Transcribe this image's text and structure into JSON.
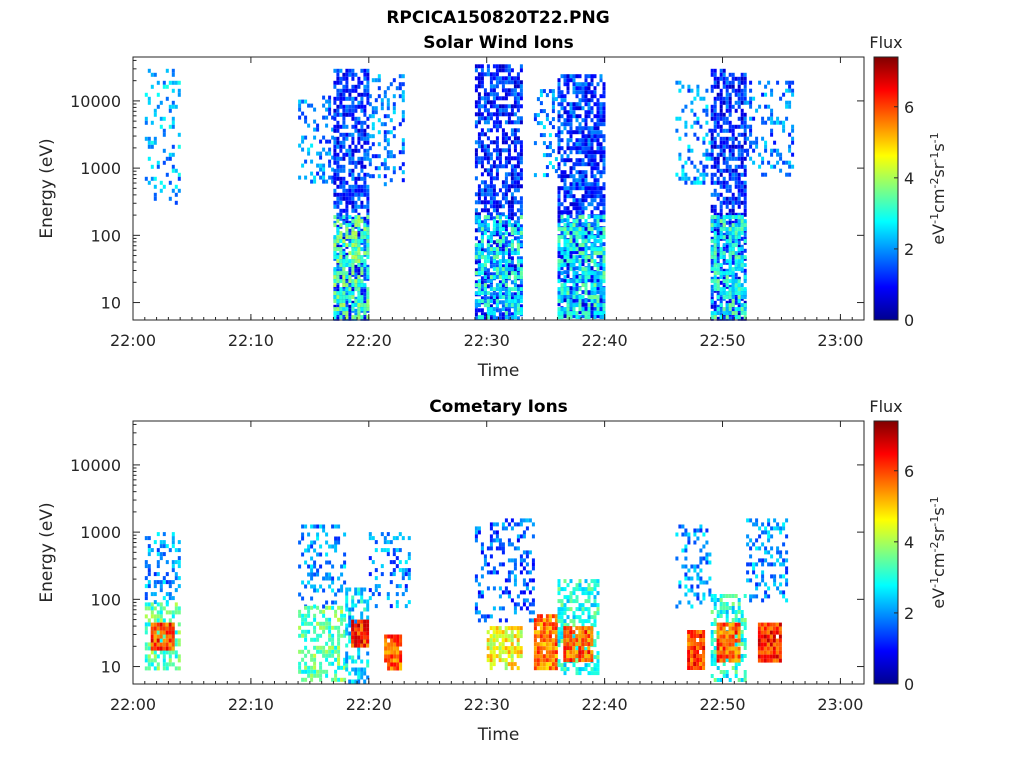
{
  "figure": {
    "title": "RPCICA150820T22.PNG"
  },
  "colormap": [
    "#00008f",
    "#0000ff",
    "#0080ff",
    "#00ffff",
    "#80ff80",
    "#ffff00",
    "#ff8000",
    "#ff0000",
    "#800000"
  ],
  "chart_data": [
    {
      "type": "heatmap",
      "title": "Solar Wind Ions",
      "xlabel": "Time",
      "ylabel": "Energy (eV)",
      "yscale": "log",
      "xlim": [
        "22:00",
        "23:02"
      ],
      "ylim": [
        5.5,
        45000
      ],
      "xticks": [
        "22:00",
        "22:10",
        "22:20",
        "22:30",
        "22:40",
        "22:50",
        "23:00"
      ],
      "yticks": [
        "10",
        "100",
        "1000",
        "10000"
      ],
      "colorbar": {
        "label": "Flux",
        "unit": "eV-1cm-2sr-1s-1",
        "range": [
          0,
          7.4
        ],
        "ticks": [
          "0",
          "2",
          "4",
          "6"
        ]
      },
      "grid": false,
      "clusters": [
        {
          "t_start": "22:01",
          "t_end": "22:04",
          "e_min": 300,
          "e_max": 30000,
          "flux_mean": 2.2,
          "density": 0.25
        },
        {
          "t_start": "22:14",
          "t_end": "22:17",
          "e_min": 600,
          "e_max": 12000,
          "flux_mean": 1.9,
          "density": 0.28
        },
        {
          "t_start": "22:17",
          "t_end": "22:20",
          "e_min": 6,
          "e_max": 30000,
          "flux_mean": 1.3,
          "density": 0.7
        },
        {
          "t_start": "22:17",
          "t_end": "22:20",
          "e_min": 6,
          "e_max": 200,
          "flux_mean": 3.3,
          "density": 0.7
        },
        {
          "t_start": "22:20",
          "t_end": "22:23",
          "e_min": 600,
          "e_max": 25000,
          "flux_mean": 1.8,
          "density": 0.3
        },
        {
          "t_start": "22:29",
          "t_end": "22:33",
          "e_min": 6,
          "e_max": 35000,
          "flux_mean": 1.2,
          "density": 0.62
        },
        {
          "t_start": "22:29",
          "t_end": "22:33",
          "e_min": 6,
          "e_max": 200,
          "flux_mean": 2.8,
          "density": 0.55
        },
        {
          "t_start": "22:34",
          "t_end": "22:36",
          "e_min": 800,
          "e_max": 15000,
          "flux_mean": 2.0,
          "density": 0.25
        },
        {
          "t_start": "22:36",
          "t_end": "22:40",
          "e_min": 6,
          "e_max": 25000,
          "flux_mean": 1.3,
          "density": 0.7
        },
        {
          "t_start": "22:36",
          "t_end": "22:40",
          "e_min": 6,
          "e_max": 200,
          "flux_mean": 2.9,
          "density": 0.65
        },
        {
          "t_start": "22:46",
          "t_end": "22:49",
          "e_min": 600,
          "e_max": 20000,
          "flux_mean": 2.0,
          "density": 0.3
        },
        {
          "t_start": "22:49",
          "t_end": "22:52",
          "e_min": 6,
          "e_max": 30000,
          "flux_mean": 1.2,
          "density": 0.68
        },
        {
          "t_start": "22:49",
          "t_end": "22:52",
          "e_min": 6,
          "e_max": 200,
          "flux_mean": 2.9,
          "density": 0.6
        },
        {
          "t_start": "22:52",
          "t_end": "22:56",
          "e_min": 800,
          "e_max": 20000,
          "flux_mean": 1.8,
          "density": 0.28
        }
      ]
    },
    {
      "type": "heatmap",
      "title": "Cometary Ions",
      "xlabel": "Time",
      "ylabel": "Energy (eV)",
      "yscale": "log",
      "xlim": [
        "22:00",
        "23:02"
      ],
      "ylim": [
        5.5,
        45000
      ],
      "xticks": [
        "22:00",
        "22:10",
        "22:20",
        "22:30",
        "22:40",
        "22:50",
        "23:00"
      ],
      "yticks": [
        "10",
        "100",
        "1000",
        "10000"
      ],
      "colorbar": {
        "label": "Flux",
        "unit": "eV-1cm-2sr-1s-1",
        "range": [
          0,
          7.4
        ],
        "ticks": [
          "0",
          "2",
          "4",
          "6"
        ]
      },
      "grid": false,
      "clusters": [
        {
          "t_start": "22:01",
          "t_end": "22:04",
          "e_min": 90,
          "e_max": 1000,
          "flux_mean": 2.0,
          "density": 0.32
        },
        {
          "t_start": "22:01",
          "t_end": "22:04",
          "e_min": 10,
          "e_max": 90,
          "flux_mean": 3.4,
          "density": 0.6
        },
        {
          "t_start": "22:01.5",
          "t_end": "22:03.5",
          "e_min": 18,
          "e_max": 45,
          "flux_mean": 6.0,
          "density": 0.95
        },
        {
          "t_start": "22:14",
          "t_end": "22:18",
          "e_min": 80,
          "e_max": 1300,
          "flux_mean": 2.0,
          "density": 0.3
        },
        {
          "t_start": "22:14",
          "t_end": "22:18",
          "e_min": 6,
          "e_max": 80,
          "flux_mean": 3.4,
          "density": 0.5
        },
        {
          "t_start": "22:18",
          "t_end": "22:20",
          "e_min": 6,
          "e_max": 150,
          "flux_mean": 2.5,
          "density": 0.55
        },
        {
          "t_start": "22:18.5",
          "t_end": "22:20",
          "e_min": 20,
          "e_max": 50,
          "flux_mean": 6.2,
          "density": 0.95
        },
        {
          "t_start": "22:20",
          "t_end": "22:23.5",
          "e_min": 80,
          "e_max": 1000,
          "flux_mean": 1.9,
          "density": 0.3
        },
        {
          "t_start": "22:21.3",
          "t_end": "22:22.7",
          "e_min": 10,
          "e_max": 30,
          "flux_mean": 5.8,
          "density": 0.95
        },
        {
          "t_start": "22:29",
          "t_end": "22:34",
          "e_min": 50,
          "e_max": 1600,
          "flux_mean": 1.6,
          "density": 0.3
        },
        {
          "t_start": "22:30",
          "t_end": "22:33",
          "e_min": 10,
          "e_max": 40,
          "flux_mean": 4.6,
          "density": 0.8
        },
        {
          "t_start": "22:34",
          "t_end": "22:36",
          "e_min": 10,
          "e_max": 60,
          "flux_mean": 5.6,
          "density": 0.9
        },
        {
          "t_start": "22:36",
          "t_end": "22:39.5",
          "e_min": 8,
          "e_max": 200,
          "flux_mean": 3.0,
          "density": 0.55
        },
        {
          "t_start": "22:36.5",
          "t_end": "22:39",
          "e_min": 12,
          "e_max": 40,
          "flux_mean": 5.8,
          "density": 0.95
        },
        {
          "t_start": "22:46",
          "t_end": "22:49",
          "e_min": 80,
          "e_max": 1300,
          "flux_mean": 2.0,
          "density": 0.3
        },
        {
          "t_start": "22:47",
          "t_end": "22:48.5",
          "e_min": 10,
          "e_max": 35,
          "flux_mean": 6.0,
          "density": 0.95
        },
        {
          "t_start": "22:49",
          "t_end": "22:52",
          "e_min": 6,
          "e_max": 120,
          "flux_mean": 3.0,
          "density": 0.5
        },
        {
          "t_start": "22:49.5",
          "t_end": "22:51.5",
          "e_min": 12,
          "e_max": 45,
          "flux_mean": 5.8,
          "density": 0.95
        },
        {
          "t_start": "22:52",
          "t_end": "22:55.5",
          "e_min": 100,
          "e_max": 1600,
          "flux_mean": 2.0,
          "density": 0.3
        },
        {
          "t_start": "22:53",
          "t_end": "22:55",
          "e_min": 12,
          "e_max": 45,
          "flux_mean": 6.2,
          "density": 0.95
        }
      ]
    }
  ]
}
